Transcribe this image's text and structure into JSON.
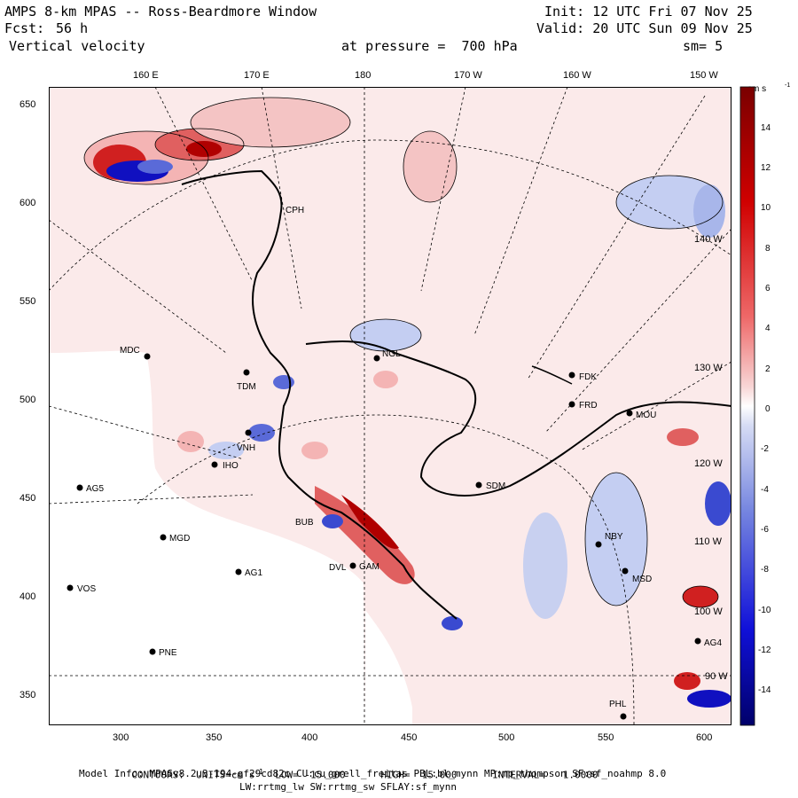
{
  "header": {
    "title": "AMPS 8-km MPAS -- Ross-Beardmore Window",
    "fcst_label": "Fcst:",
    "fcst_value": "56 h",
    "field": "Vertical velocity",
    "init": "Init: 12 UTC Fri 07 Nov 25",
    "valid": "Valid: 20 UTC Sun 09 Nov 25",
    "pressure": "at pressure =  700 hPa",
    "smoothing": "sm= 5"
  },
  "top_lon_labels": [
    "160 E",
    "170 E",
    "180",
    "170 W",
    "160 W",
    "150 W"
  ],
  "x_ticks": [
    "300",
    "350",
    "400",
    "450",
    "500",
    "550",
    "600"
  ],
  "y_ticks": [
    "650",
    "600",
    "550",
    "500",
    "450",
    "400",
    "350"
  ],
  "right_lon_labels": [
    "140 W",
    "130 W",
    "120 W",
    "110 W",
    "100 W",
    "90 W"
  ],
  "colorbar": {
    "units": "cm s",
    "units_exp": "-1",
    "labels": [
      "14",
      "12",
      "10",
      "8",
      "6",
      "4",
      "2",
      "0",
      "-2",
      "-4",
      "-6",
      "-8",
      "-10",
      "-12",
      "-14"
    ]
  },
  "stations": [
    "CPH",
    "MDC",
    "NGL",
    "TDM",
    "FDK",
    "FRD",
    "MOU",
    "VNH",
    "IHO",
    "AG5",
    "SDM",
    "BUB",
    "MGD",
    "DVL",
    "GAM",
    "NBY",
    "AG1",
    "MSD",
    "VOS",
    "PNE",
    "AG4",
    "PHL"
  ],
  "footer": {
    "contours": "CONTOURS:  UNITS=cm s",
    "contours_exp": "-1",
    "contours_rest": "  LOW= -15.000      HIGH=  15.000      INTERVAL=   1.0000",
    "model_info": "Model Info: MPASv8.2.3-194-gf29cd82c CU:cu_grell_freitas PBL:bl_mynn MP:mp_thompson SF:sf_noahmp 8.0",
    "model_info2": "LW:rrtmg_lw SW:rrtmg_sw SFLAY:sf_mynn"
  },
  "colors": {
    "up_strong": "#b00000",
    "up_weak": "#f4b4b4",
    "down_strong": "#1010c0",
    "down_weak": "#b8c4ee",
    "background_tint": "#fbeaea",
    "no_data": "#ffffff"
  }
}
